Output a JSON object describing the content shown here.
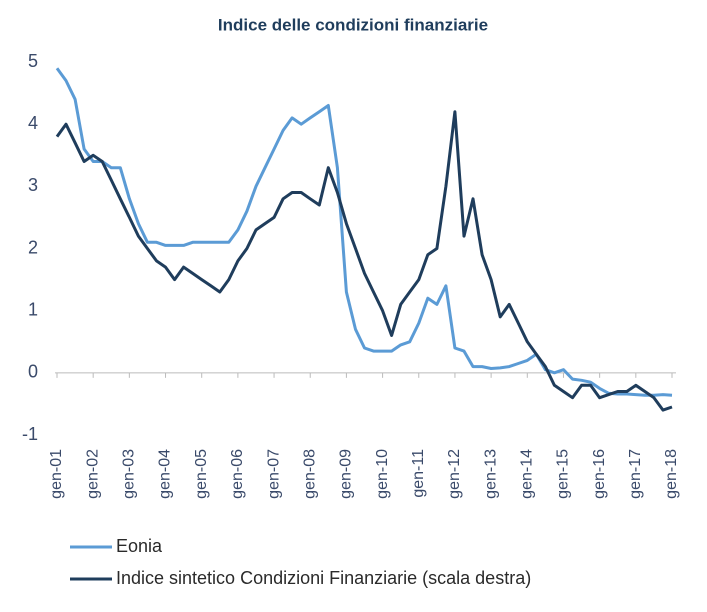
{
  "chart_data": {
    "type": "line",
    "title": "Indice delle condizioni finanziarie",
    "categories": [
      "gen-01",
      null,
      null,
      null,
      "gen-02",
      null,
      null,
      null,
      "gen-03",
      null,
      null,
      null,
      "gen-04",
      null,
      null,
      null,
      "gen-05",
      null,
      null,
      null,
      "gen-06",
      null,
      null,
      null,
      "gen-07",
      null,
      null,
      null,
      "gen-08",
      null,
      null,
      null,
      "gen-09",
      null,
      null,
      null,
      "gen-10",
      null,
      null,
      null,
      "gen-11",
      null,
      null,
      null,
      "gen-12",
      null,
      null,
      null,
      "gen-13",
      null,
      null,
      null,
      "gen-14",
      null,
      null,
      null,
      "gen-15",
      null,
      null,
      null,
      "gen-16",
      null,
      null,
      null,
      "gen-17",
      null,
      null,
      null,
      "gen-18"
    ],
    "series": [
      {
        "name": "Eonia",
        "color": "#5b9bd5",
        "values": [
          4.9,
          4.7,
          4.4,
          3.6,
          3.4,
          3.4,
          3.3,
          3.3,
          2.8,
          2.4,
          2.1,
          2.1,
          2.05,
          2.05,
          2.05,
          2.1,
          2.1,
          2.1,
          2.1,
          2.1,
          2.3,
          2.6,
          3.0,
          3.3,
          3.6,
          3.9,
          4.1,
          4.0,
          4.1,
          4.2,
          4.3,
          3.3,
          1.3,
          0.7,
          0.4,
          0.35,
          0.35,
          0.35,
          0.45,
          0.5,
          0.8,
          1.2,
          1.1,
          1.4,
          0.4,
          0.35,
          0.1,
          0.1,
          0.07,
          0.08,
          0.1,
          0.15,
          0.2,
          0.3,
          0.05,
          0.0,
          0.05,
          -0.1,
          -0.12,
          -0.15,
          -0.25,
          -0.33,
          -0.34,
          -0.34,
          -0.35,
          -0.36,
          -0.36,
          -0.35,
          -0.36
        ]
      },
      {
        "name": "Indice sintetico Condizioni Finanziarie (scala destra)",
        "color": "#1f3d5c",
        "values": [
          3.8,
          4.0,
          3.7,
          3.4,
          3.5,
          3.4,
          3.1,
          2.8,
          2.5,
          2.2,
          2.0,
          1.8,
          1.7,
          1.5,
          1.7,
          1.6,
          1.5,
          1.4,
          1.3,
          1.5,
          1.8,
          2.0,
          2.3,
          2.4,
          2.5,
          2.8,
          2.9,
          2.9,
          2.8,
          2.7,
          3.3,
          2.9,
          2.4,
          2.0,
          1.6,
          1.3,
          1.0,
          0.6,
          1.1,
          1.3,
          1.5,
          1.9,
          2.0,
          3.0,
          4.2,
          2.2,
          2.8,
          1.9,
          1.5,
          0.9,
          1.1,
          0.8,
          0.5,
          0.3,
          0.1,
          -0.2,
          -0.3,
          -0.4,
          -0.2,
          -0.2,
          -0.4,
          -0.35,
          -0.3,
          -0.3,
          -0.2,
          -0.3,
          -0.4,
          -0.6,
          -0.55
        ]
      }
    ],
    "ylim": [
      -1,
      5
    ],
    "yticks": [
      -1,
      0,
      1,
      2,
      3,
      4,
      5
    ],
    "grid": false
  }
}
